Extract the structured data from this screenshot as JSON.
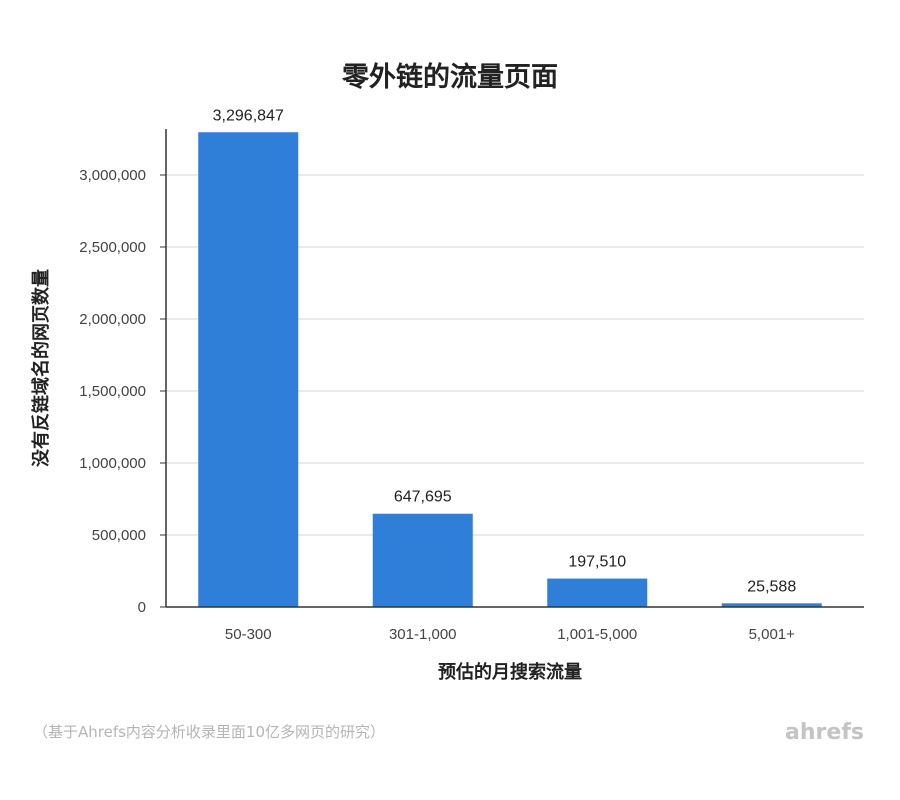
{
  "chart_data": {
    "type": "bar",
    "title": "零外链的流量页面",
    "xlabel": "预估的月搜索流量",
    "ylabel": "没有反链域名的网页数量",
    "categories": [
      "50-300",
      "301-1,000",
      "1,001-5,000",
      "5,001+"
    ],
    "values": [
      3296847,
      647695,
      197510,
      25588
    ],
    "value_labels": [
      "3,296,847",
      "647,695",
      "197,510",
      "25,588"
    ],
    "ylim": [
      0,
      3000000
    ],
    "yticks": [
      0,
      500000,
      1000000,
      1500000,
      2000000,
      2500000,
      3000000
    ],
    "ytick_labels": [
      "0",
      "500,000",
      "1,000,000",
      "1,500,000",
      "2,000,000",
      "2,500,000",
      "3,000,000"
    ],
    "grid": true,
    "bar_color": "#2f7ed8"
  },
  "footnote": "（基于Ahrefs内容分析收录里面10亿多网页的研究）",
  "brand": "ahrefs"
}
